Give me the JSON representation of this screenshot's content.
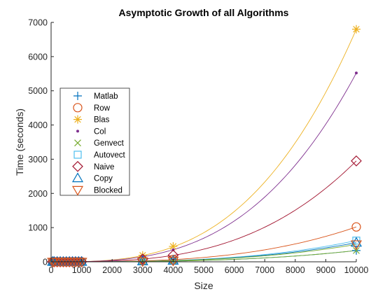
{
  "chart_data": {
    "type": "scatter",
    "title": "Asymptotic Growth of all Algorithms",
    "xlabel": "Size",
    "ylabel": "Time (seconds)",
    "xlim": [
      0,
      10000
    ],
    "ylim": [
      0,
      7000
    ],
    "xticks": [
      "0",
      "1000",
      "2000",
      "3000",
      "4000",
      "5000",
      "6000",
      "7000",
      "8000",
      "9000",
      "10000"
    ],
    "yticks": [
      "0",
      "1000",
      "2000",
      "3000",
      "4000",
      "5000",
      "6000",
      "7000"
    ],
    "grid": false,
    "legend_position": "left-middle",
    "x": [
      50,
      100,
      200,
      300,
      400,
      500,
      600,
      700,
      800,
      900,
      1000,
      3000,
      4000,
      10000
    ],
    "series": [
      {
        "name": "Matlab",
        "marker": "plus",
        "color": "#0072BD",
        "fit_color": "#0072BD",
        "values": [
          0,
          0,
          0,
          0,
          0,
          0,
          0,
          0,
          0,
          0.1,
          0.1,
          2,
          5,
          330
        ]
      },
      {
        "name": "Row",
        "marker": "circle",
        "color": "#D95319",
        "fit_color": "#D95319",
        "values": [
          0,
          0,
          0,
          0,
          0.1,
          0.2,
          0.3,
          0.4,
          0.6,
          0.8,
          1,
          28,
          66,
          1020
        ]
      },
      {
        "name": "Blas",
        "marker": "asterisk",
        "color": "#EDB120",
        "fit_color": "#EDB120",
        "values": [
          0,
          0,
          0,
          0.1,
          0.3,
          0.5,
          0.9,
          1.5,
          2.3,
          3.3,
          5,
          190,
          450,
          6800
        ]
      },
      {
        "name": "Col",
        "marker": "dot",
        "color": "#7E2F8E",
        "fit_color": "#7E2F8E",
        "values": [
          0,
          0,
          0,
          0.1,
          0.2,
          0.4,
          0.7,
          1.2,
          1.8,
          2.6,
          4,
          150,
          350,
          5520
        ]
      },
      {
        "name": "Genvect",
        "marker": "x",
        "color": "#77AC30",
        "fit_color": "#77AC30",
        "values": [
          0,
          0,
          0,
          0,
          0,
          0,
          0.1,
          0.1,
          0.2,
          0.2,
          0.3,
          9,
          22,
          330
        ]
      },
      {
        "name": "Autovect",
        "marker": "square",
        "color": "#4DBEEE",
        "fit_color": "#4DBEEE",
        "values": [
          0,
          0,
          0,
          0,
          0,
          0.1,
          0.1,
          0.2,
          0.3,
          0.4,
          0.5,
          15,
          38,
          620
        ]
      },
      {
        "name": "Naive",
        "marker": "diamond",
        "color": "#A2142F",
        "fit_color": "#A2142F",
        "values": [
          0,
          0,
          0,
          0.1,
          0.1,
          0.2,
          0.4,
          0.6,
          0.9,
          1.3,
          2,
          80,
          195,
          2950
        ]
      },
      {
        "name": "Copy",
        "marker": "triangle-up",
        "color": "#0072BD",
        "fit_color": "#0072BD",
        "values": [
          0,
          0,
          0,
          0,
          0,
          0.1,
          0.1,
          0.2,
          0.2,
          0.3,
          0.4,
          14,
          34,
          560
        ]
      },
      {
        "name": "Blocked",
        "marker": "triangle-down",
        "color": "#D95319",
        "fit_color": "#77AC30",
        "values": [
          0,
          0,
          0,
          0,
          0,
          0.1,
          0.1,
          0.2,
          0.2,
          0.3,
          0.4,
          13,
          33,
          510
        ]
      }
    ]
  }
}
